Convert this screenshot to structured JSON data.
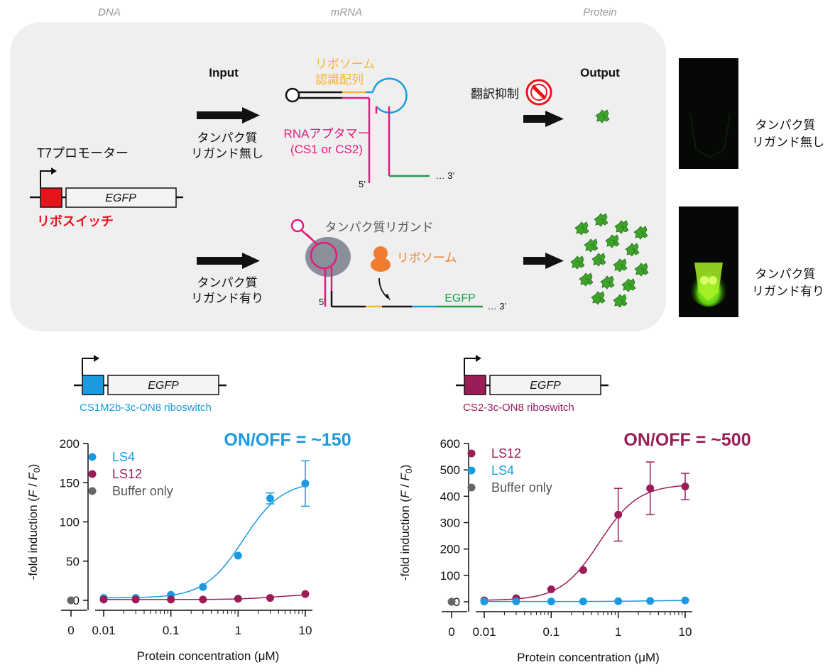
{
  "stages": {
    "dna": "DNA",
    "mrna": "mRNA",
    "protein": "Protein"
  },
  "schematic": {
    "input_label": "Input",
    "output_label": "Output",
    "promoter_label": "T7プロモーター",
    "gene_label": "EGFP",
    "riboswitch_label": "リボスイッチ",
    "ribosome_site_line1": "リボソーム",
    "ribosome_site_line2": "認識配列",
    "aptamer_line1": "RNAアプタマー",
    "aptamer_line2": "(CS1 or CS2)",
    "translation_repression": "翻訳抑制",
    "no_ligand_line1": "タンパク質",
    "no_ligand_line2": "リガンド無し",
    "with_ligand_line1": "タンパク質",
    "with_ligand_line2": "リガンド有り",
    "protein_ligand": "タンパク質リガンド",
    "ribosome": "リボソーム",
    "egfp_strand": "EGFP",
    "five_prime": "5’",
    "three_prime": "… 3’",
    "photo_no_ligand_line1": "タンパク質",
    "photo_no_ligand_line2": "リガンド無し",
    "photo_with_ligand_line1": "タンパク質",
    "photo_with_ligand_line2": "リガンド有り"
  },
  "colors": {
    "riboswitch_red": "#e8141c",
    "aptamer_pink": "#e6197d",
    "ribosome_site_yellow": "#f5b52e",
    "loop_blue": "#1a9be0",
    "strand_green": "#1a9e4a",
    "ribosome_orange": "#ee7d30",
    "ligand_gray": "#8a8f9a",
    "cs1_blue": "#1a9be0",
    "cs2_maroon": "#9b1d57",
    "buffer_gray": "#666666"
  },
  "constructs": {
    "left": {
      "gene": "EGFP",
      "label": "CS1M2b-3c-ON8 riboswitch"
    },
    "right": {
      "gene": "EGFP",
      "label": "CS2-3c-ON8 riboswitch"
    }
  },
  "chart_data": [
    {
      "type": "scatter",
      "title": "ON/OFF = ~150",
      "xlabel": "Protein concentration (μM)",
      "ylabel": "-fold induction (F / F0)",
      "x_scale": "log",
      "x_ticks": [
        "0",
        "0.01",
        "0.1",
        "1",
        "10"
      ],
      "y_ticks": [
        "0",
        "50",
        "100",
        "150",
        "200"
      ],
      "ylim": [
        0,
        200
      ],
      "legend_placement": "top-left",
      "series": [
        {
          "name": "LS4",
          "color": "#1a9be0",
          "x": [
            0.01,
            0.03,
            0.1,
            0.3,
            1,
            3,
            10
          ],
          "y": [
            3,
            3,
            7,
            17,
            57,
            130,
            149
          ],
          "err": [
            0,
            0,
            0,
            0,
            0,
            7,
            29
          ],
          "fit": true
        },
        {
          "name": "LS12",
          "color": "#9b1d57",
          "x": [
            0.01,
            0.03,
            0.1,
            0.3,
            1,
            3,
            10
          ],
          "y": [
            1,
            1,
            1,
            1,
            2,
            3,
            8
          ],
          "err": [
            0,
            0,
            0,
            0,
            0,
            0,
            0
          ],
          "fit": true
        },
        {
          "name": "Buffer only",
          "color": "#666666",
          "x": [
            0
          ],
          "y": [
            0
          ],
          "err": [
            0
          ],
          "fit": false
        }
      ]
    },
    {
      "type": "scatter",
      "title": "ON/OFF = ~500",
      "xlabel": "Protein concentration (μM)",
      "ylabel": "-fold induction (F / F0)",
      "x_scale": "log",
      "x_ticks": [
        "0",
        "0.01",
        "0.1",
        "1",
        "10"
      ],
      "y_ticks": [
        "0",
        "100",
        "200",
        "300",
        "400",
        "500",
        "600"
      ],
      "ylim": [
        0,
        600
      ],
      "legend_placement": "top-left",
      "series": [
        {
          "name": "LS12",
          "color": "#9b1d57",
          "x": [
            0.01,
            0.03,
            0.1,
            0.3,
            1,
            3,
            10
          ],
          "y": [
            5,
            13,
            47,
            120,
            330,
            430,
            437
          ],
          "err": [
            0,
            0,
            0,
            0,
            100,
            100,
            50
          ],
          "fit": true
        },
        {
          "name": "LS4",
          "color": "#1a9be0",
          "x": [
            0.01,
            0.03,
            0.1,
            0.3,
            1,
            3,
            10
          ],
          "y": [
            1,
            1,
            1,
            1,
            2,
            3,
            5
          ],
          "err": [
            0,
            0,
            0,
            0,
            0,
            0,
            0
          ],
          "fit": true
        },
        {
          "name": "Buffer only",
          "color": "#666666",
          "x": [
            0
          ],
          "y": [
            0
          ],
          "err": [
            0
          ],
          "fit": false
        }
      ]
    }
  ]
}
